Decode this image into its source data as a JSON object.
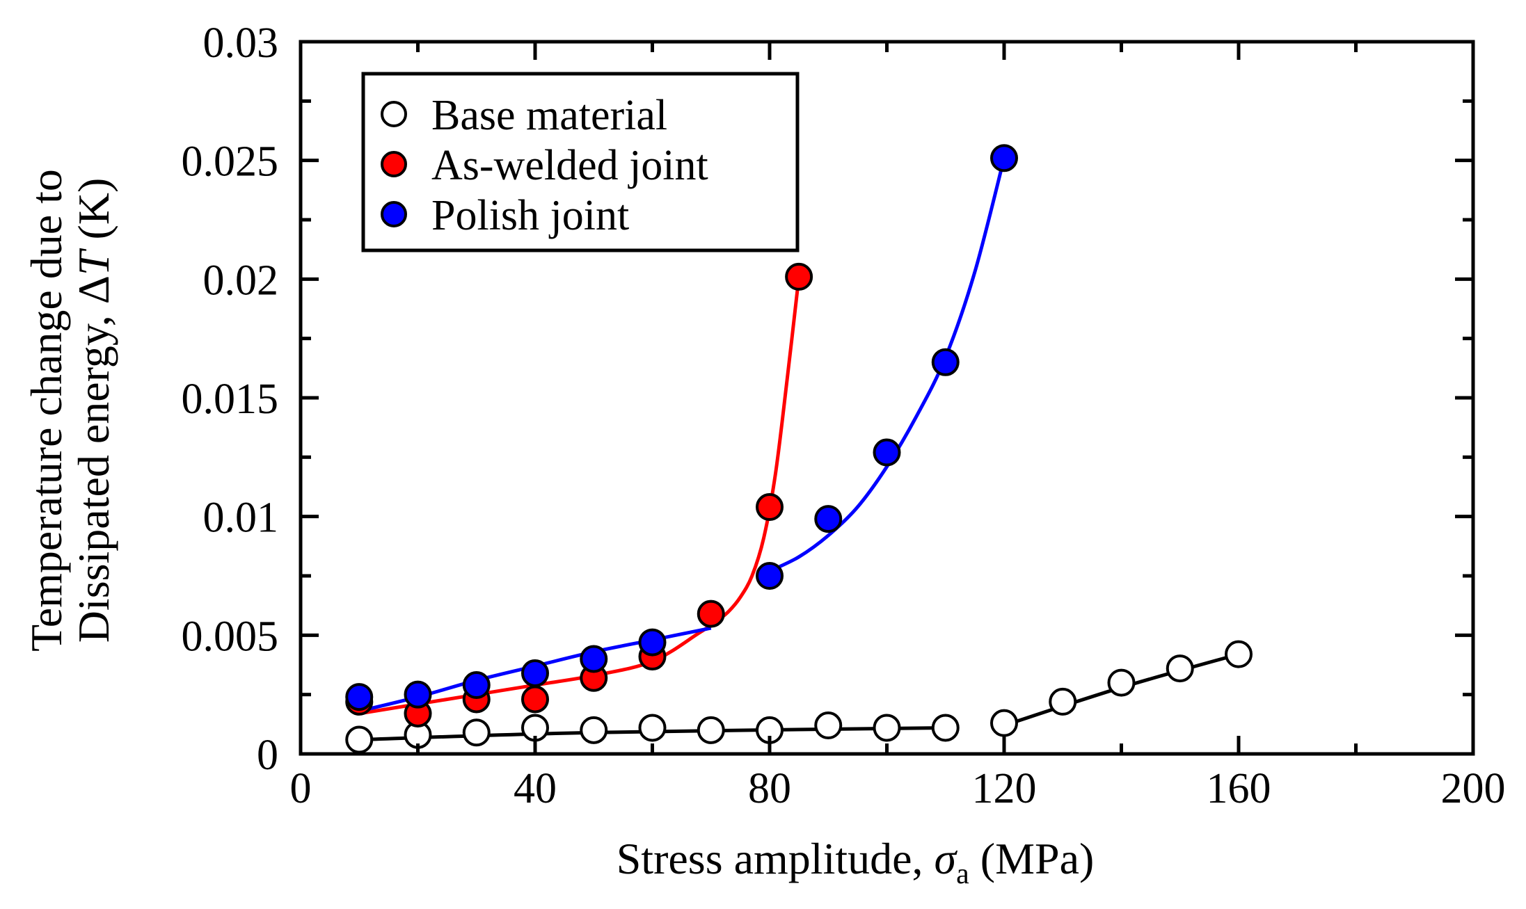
{
  "chart_data": {
    "type": "scatter",
    "title": "",
    "xlabel": {
      "prefix": "Stress amplitude, ",
      "symbol": "σ",
      "subscript": "a",
      "suffix": " (MPa)"
    },
    "ylabel": {
      "line1": "Temperature change due to",
      "line2_prefix": "Dissipated energy, Δ",
      "line2_symbol": "T",
      "line2_suffix": " (K)"
    },
    "xlim": [
      0,
      200
    ],
    "ylim": [
      0,
      0.03
    ],
    "xticks": [
      0,
      40,
      80,
      120,
      160,
      200
    ],
    "xtick_labels": [
      "0",
      "40",
      "80",
      "120",
      "160",
      "200"
    ],
    "yticks": [
      0,
      0.005,
      0.01,
      0.015,
      0.02,
      0.025,
      0.03
    ],
    "ytick_labels": [
      "0",
      "0.005",
      "0.01",
      "0.015",
      "0.02",
      "0.025",
      "0.03"
    ],
    "x_minor_step": 20,
    "y_minor_step": 0.0025,
    "grid": false,
    "legend_position": "top-left",
    "series": [
      {
        "name": "Base material",
        "fill": "#ffffff",
        "line_color": "#000000",
        "points": [
          [
            10,
            0.0006
          ],
          [
            20,
            0.0008
          ],
          [
            30,
            0.0009
          ],
          [
            40,
            0.0011
          ],
          [
            50,
            0.001
          ],
          [
            60,
            0.0011
          ],
          [
            70,
            0.001
          ],
          [
            80,
            0.001
          ],
          [
            90,
            0.0012
          ],
          [
            100,
            0.0011
          ],
          [
            110,
            0.0011
          ],
          [
            120,
            0.0013
          ],
          [
            130,
            0.0022
          ],
          [
            140,
            0.003
          ],
          [
            150,
            0.0036
          ],
          [
            160,
            0.0042
          ]
        ],
        "fit_segments": [
          [
            [
              10,
              0.0006
            ],
            [
              50,
              0.0009
            ],
            [
              110,
              0.0011
            ]
          ],
          [
            [
              120,
              0.0012
            ],
            [
              140,
              0.0028
            ],
            [
              160,
              0.0042
            ]
          ]
        ]
      },
      {
        "name": "As-welded joint",
        "fill": "#ff0000",
        "line_color": "#ff0000",
        "points": [
          [
            10,
            0.0022
          ],
          [
            20,
            0.0017
          ],
          [
            30,
            0.0023
          ],
          [
            40,
            0.0023
          ],
          [
            50,
            0.0032
          ],
          [
            60,
            0.0041
          ],
          [
            70,
            0.0059
          ],
          [
            80,
            0.0104
          ],
          [
            85,
            0.0201
          ]
        ],
        "fit_segments": [
          [
            [
              10,
              0.0017
            ],
            [
              20,
              0.0021
            ],
            [
              30,
              0.0025
            ],
            [
              40,
              0.0029
            ],
            [
              50,
              0.0033
            ],
            [
              60,
              0.0039
            ],
            [
              68,
              0.0051
            ],
            [
              71,
              0.0056
            ],
            [
              73,
              0.006
            ],
            [
              75,
              0.0066
            ],
            [
              77,
              0.0075
            ],
            [
              79,
              0.0091
            ],
            [
              81,
              0.0118
            ],
            [
              83,
              0.0158
            ],
            [
              85,
              0.0201
            ]
          ]
        ]
      },
      {
        "name": "Polish joint",
        "fill": "#0000ff",
        "line_color": "#0000ff",
        "points": [
          [
            10,
            0.0024
          ],
          [
            20,
            0.0025
          ],
          [
            30,
            0.0029
          ],
          [
            40,
            0.0034
          ],
          [
            50,
            0.004
          ],
          [
            60,
            0.0047
          ],
          [
            80,
            0.0075
          ],
          [
            90,
            0.0099
          ],
          [
            100,
            0.0127
          ],
          [
            110,
            0.0165
          ],
          [
            120,
            0.0251
          ]
        ],
        "fit_segments": [
          [
            [
              10,
              0.0018
            ],
            [
              20,
              0.0024
            ],
            [
              30,
              0.0031
            ],
            [
              40,
              0.0037
            ],
            [
              50,
              0.0043
            ],
            [
              60,
              0.0048
            ],
            [
              70,
              0.0053
            ]
          ],
          [
            [
              80,
              0.0077
            ],
            [
              85,
              0.0083
            ],
            [
              90,
              0.0092
            ],
            [
              95,
              0.0104
            ],
            [
              100,
              0.0121
            ],
            [
              105,
              0.0142
            ],
            [
              110,
              0.0167
            ],
            [
              115,
              0.0203
            ],
            [
              120,
              0.0251
            ]
          ]
        ]
      }
    ]
  }
}
